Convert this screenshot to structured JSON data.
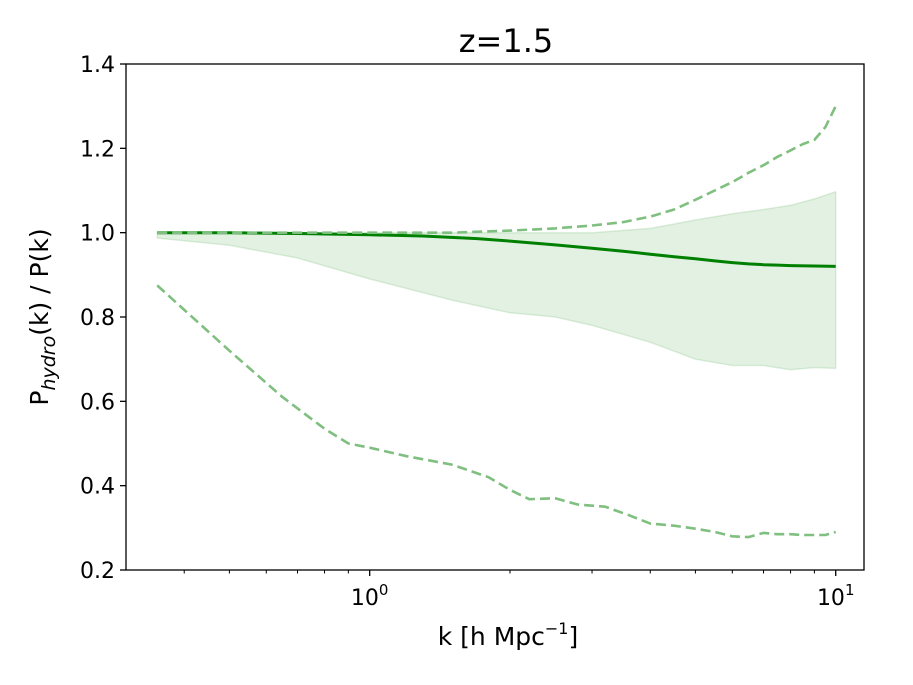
{
  "chart_data": {
    "type": "line",
    "title": "z=1.5",
    "xlabel": {
      "base": "k [h Mpc",
      "sup": "−1",
      "close": "]"
    },
    "ylabel": {
      "base": "P",
      "sub": "hydro",
      "rest": "(k) / P(k)"
    },
    "xscale": "log",
    "xlim": [
      0.3,
      11.5
    ],
    "ylim": [
      0.2,
      1.4
    ],
    "xticks": [
      {
        "value": 1,
        "base": "10",
        "exp": "0"
      },
      {
        "value": 10,
        "base": "10",
        "exp": "1"
      }
    ],
    "yticks": [
      0.2,
      0.4,
      0.6,
      0.8,
      1.0,
      1.2,
      1.4
    ],
    "ytick_labels": [
      "0.2",
      "0.4",
      "0.6",
      "0.8",
      "1.0",
      "1.2",
      "1.4"
    ],
    "grid": false,
    "colors": {
      "main": "#008000",
      "dashed": "#7fbf7f",
      "band": "#008000"
    },
    "series": [
      {
        "style": "solid",
        "x": [
          0.35,
          0.5,
          0.7,
          1.0,
          1.3,
          1.7,
          2.0,
          2.5,
          3.0,
          3.5,
          4.0,
          4.5,
          5.0,
          5.5,
          6.0,
          6.5,
          7.0,
          7.5,
          8.0,
          9.0,
          10.0
        ],
        "y": [
          1.0,
          1.0,
          0.998,
          0.995,
          0.992,
          0.986,
          0.98,
          0.971,
          0.963,
          0.956,
          0.949,
          0.943,
          0.938,
          0.933,
          0.929,
          0.926,
          0.924,
          0.923,
          0.922,
          0.921,
          0.92
        ]
      },
      {
        "style": "dashed",
        "x": [
          0.35,
          0.6,
          1.0,
          1.5,
          2.0,
          2.5,
          3.0,
          3.5,
          4.0,
          4.5,
          5.0,
          5.5,
          6.0,
          6.5,
          7.0,
          7.5,
          8.0,
          8.5,
          9.0,
          9.5,
          10.0
        ],
        "y": [
          1.0,
          1.0,
          1.0,
          1.0,
          1.005,
          1.01,
          1.017,
          1.025,
          1.038,
          1.055,
          1.078,
          1.1,
          1.12,
          1.142,
          1.16,
          1.18,
          1.195,
          1.21,
          1.22,
          1.25,
          1.3
        ]
      },
      {
        "style": "dashed",
        "x": [
          0.35,
          0.5,
          0.65,
          0.8,
          0.9,
          1.0,
          1.2,
          1.5,
          1.8,
          2.0,
          2.2,
          2.5,
          2.8,
          3.2,
          3.6,
          4.0,
          4.5,
          5.0,
          5.5,
          6.0,
          6.5,
          7.0,
          7.5,
          8.0,
          8.5,
          9.0,
          9.5,
          10.0
        ],
        "y": [
          0.875,
          0.72,
          0.61,
          0.535,
          0.5,
          0.49,
          0.47,
          0.45,
          0.42,
          0.39,
          0.368,
          0.37,
          0.355,
          0.35,
          0.33,
          0.31,
          0.305,
          0.298,
          0.29,
          0.28,
          0.278,
          0.288,
          0.285,
          0.285,
          0.283,
          0.283,
          0.283,
          0.29
        ]
      }
    ],
    "band": {
      "x": [
        0.35,
        0.5,
        0.7,
        1.0,
        1.5,
        2.0,
        2.5,
        3.0,
        4.0,
        5.0,
        6.0,
        7.0,
        8.0,
        9.0,
        10.0
      ],
      "y_low": [
        0.987,
        0.97,
        0.94,
        0.89,
        0.84,
        0.81,
        0.8,
        0.78,
        0.74,
        0.7,
        0.685,
        0.685,
        0.675,
        0.68,
        0.678
      ],
      "y_high": [
        1.0,
        1.0,
        1.0,
        1.0,
        1.0,
        1.0,
        1.0,
        1.0,
        1.01,
        1.03,
        1.045,
        1.055,
        1.065,
        1.08,
        1.097
      ]
    }
  }
}
